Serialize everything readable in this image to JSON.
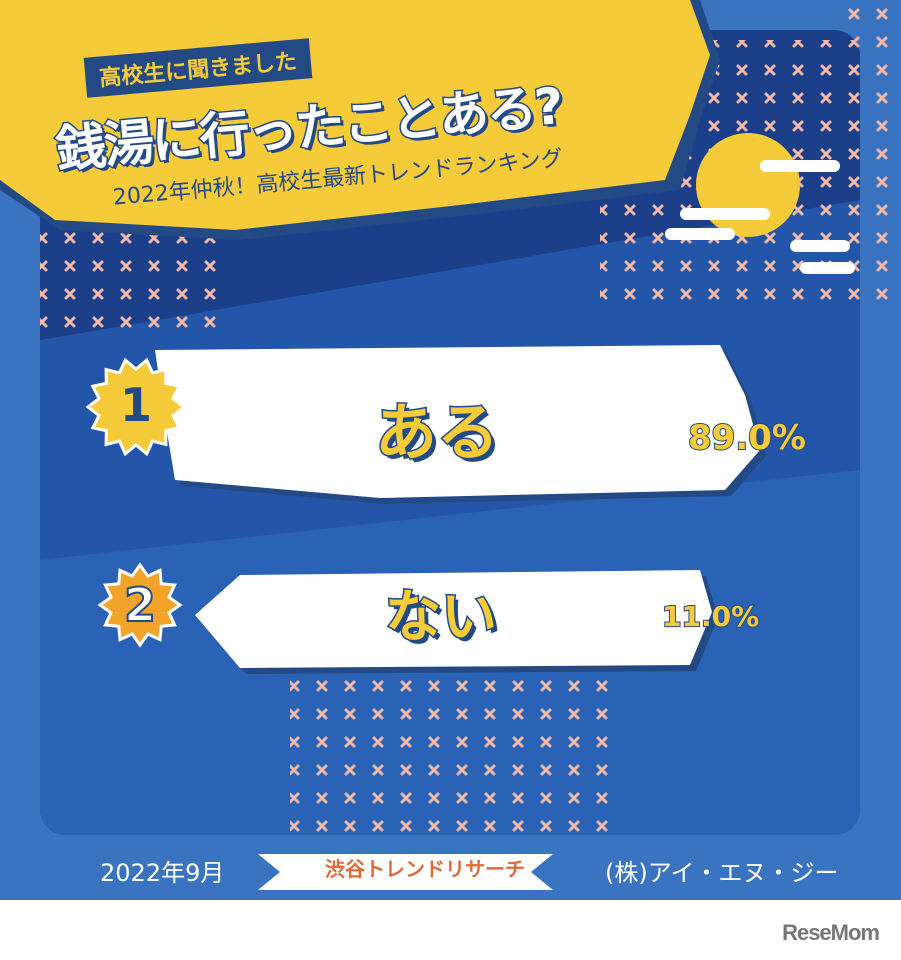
{
  "header": {
    "tag": "高校生に聞きました",
    "title": "銭湯に行ったことある?",
    "subtitle": "2022年仲秋！高校生最新トレンドランキング"
  },
  "chart_data": {
    "type": "table",
    "title": "銭湯に行ったことある?",
    "rows": [
      {
        "rank": "1",
        "label": "ある",
        "value": 89.0,
        "value_label": "89.0%"
      },
      {
        "rank": "2",
        "label": "ない",
        "value": 11.0,
        "value_label": "11.0%"
      }
    ]
  },
  "footer": {
    "date": "2022年9月",
    "ribbon": "渋谷トレンドリサーチ",
    "company": "(株)アイ・エヌ・ジー"
  },
  "watermark": "ReseMom",
  "colors": {
    "navy": "#1c3f8a",
    "blue": "#3a73c0",
    "yellow": "#f6cb3a",
    "orange": "#f2a42a",
    "text_navy": "#244a85"
  }
}
